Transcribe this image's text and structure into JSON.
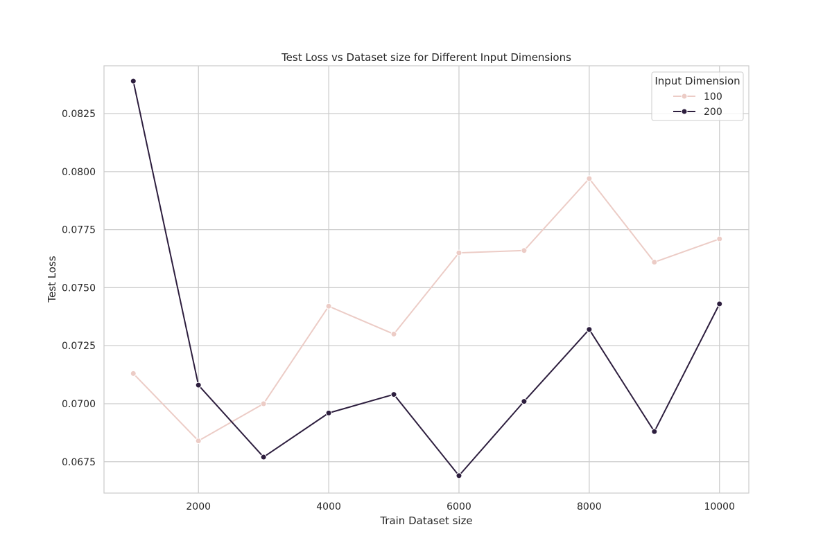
{
  "chart_data": {
    "type": "line",
    "title": "Test Loss vs Dataset size for Different Input Dimensions",
    "xlabel": "Train Dataset size",
    "ylabel": "Test Loss",
    "x": [
      1000,
      2000,
      3000,
      4000,
      5000,
      6000,
      7000,
      8000,
      9000,
      10000
    ],
    "xlim": [
      550,
      10450
    ],
    "ylim": [
      0.06615,
      0.08456
    ],
    "xticks": [
      2000,
      4000,
      6000,
      8000,
      10000
    ],
    "xtick_labels": [
      "2000",
      "4000",
      "6000",
      "8000",
      "10000"
    ],
    "yticks": [
      0.0675,
      0.07,
      0.0725,
      0.075,
      0.0775,
      0.08,
      0.0825
    ],
    "ytick_labels": [
      "0.0675",
      "0.0700",
      "0.0725",
      "0.0750",
      "0.0775",
      "0.0800",
      "0.0825"
    ],
    "grid": true,
    "legend": {
      "title": "Input Dimension",
      "placement": "top-right"
    },
    "series": [
      {
        "name": "100",
        "color": "#ecccc6",
        "values": [
          0.0713,
          0.0684,
          0.07,
          0.0742,
          0.073,
          0.0765,
          0.0766,
          0.0797,
          0.0761,
          0.0771
        ]
      },
      {
        "name": "200",
        "color": "#2d1e3e",
        "values": [
          0.0839,
          0.0708,
          0.0677,
          0.0696,
          0.0704,
          0.0669,
          0.0701,
          0.0732,
          0.0688,
          0.0743
        ]
      }
    ]
  }
}
